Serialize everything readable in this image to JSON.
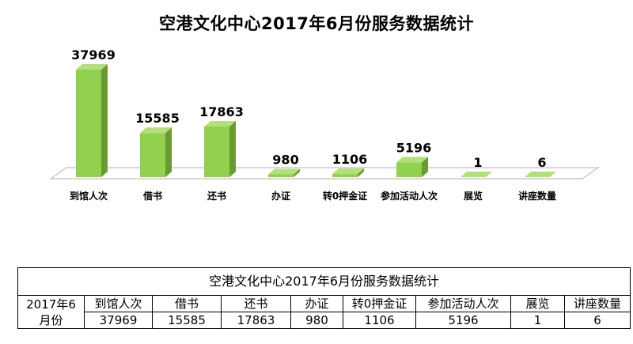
{
  "chart_data": {
    "type": "bar",
    "title": "空港文化中心2017年6月份服务数据统计",
    "categories": [
      "到馆人次",
      "借书",
      "还书",
      "办证",
      "转0押金证",
      "参加活动人次",
      "展览",
      "讲座数量"
    ],
    "values": [
      37969,
      15585,
      17863,
      980,
      1106,
      5196,
      1,
      6
    ],
    "data_labels": [
      "37969",
      "15585",
      "17863",
      "980",
      "1106",
      "5196",
      "1",
      "6"
    ],
    "ylim": [
      0,
      40000
    ],
    "grid": false,
    "legend": "none",
    "bar_color": "#92d050",
    "bar_side_color": "#6a9a32",
    "bar_top_color": "#b4e07a"
  },
  "table": {
    "title": "空港文化中心2017年6月份服务数据统计",
    "row_header_line1": "2017年6",
    "row_header_line2": "月份",
    "headers": [
      "到馆人次",
      "借书",
      "还书",
      "办证",
      "转0押金证",
      "参加活动人次",
      "展览",
      "讲座数量"
    ],
    "values": [
      "37969",
      "15585",
      "17863",
      "980",
      "1106",
      "5196",
      "1",
      "6"
    ]
  }
}
